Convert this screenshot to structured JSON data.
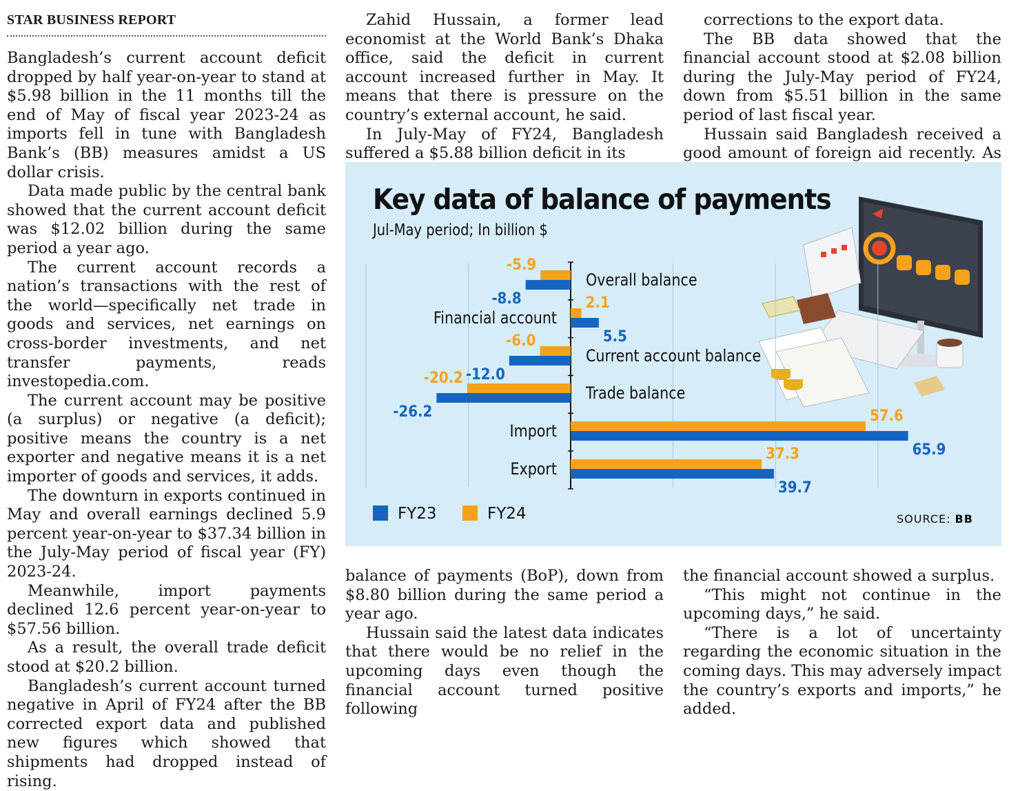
{
  "kicker": "STAR BUSINESS REPORT",
  "article": {
    "col1": [
      "Bangladesh’s current account deficit dropped by half year-on-year to stand at $5.98 billion in the 11 months till the end of May of fiscal year 2023-24 as imports fell in tune with Bangladesh Bank’s (BB) measures amidst a US dollar crisis.",
      "Data made public by the central bank showed that the current account deficit was $12.02 billion during the same period a year ago.",
      "The current account records a nation’s transactions with the rest of the world—specifically net trade in goods and services, net earnings on cross-border investments, and net transfer payments, reads investopedia.com.",
      "The current account may be positive (a surplus) or negative (a deficit); positive means the country is a net exporter and negative means it is a net importer of goods and services, it adds.",
      "The downturn in exports continued in May and overall earnings declined 5.9 percent year-on-year to $37.34 billion in the July-May period of fiscal year (FY) 2023-24.",
      "Meanwhile, import payments declined 12.6 percent year-on-year to $57.56 billion.",
      "As a result, the overall trade deficit stood at $20.2 billion.",
      "Bangladesh’s current account turned negative in April of FY24 after the BB corrected export data and published new figures which showed that shipments had dropped instead of rising."
    ],
    "col2_top": [
      "Zahid Hussain, a former lead economist at the World Bank’s Dhaka office, said the deficit in current account increased further in May. It means that there is pressure on the country’s external account, he said.",
      "In July-May of FY24, Bangladesh suffered a $5.88 billion deficit in its"
    ],
    "col3_top": [
      "corrections to the export data.",
      "The BB data showed that the financial account stood at $2.08 billion during the July-May period of FY24, down from $5.51 billion in the same period of last fiscal year.",
      "Hussain said Bangladesh received a good amount of foreign aid recently. As a result,"
    ],
    "col2_bottom": [
      "balance of payments (BoP), down from $8.80 billion during the same period a year ago.",
      "Hussain said the latest data indicates that there would be no relief in the upcoming days even though the financial account turned positive following"
    ],
    "col3_bottom": [
      "the financial account showed a surplus.",
      "“This might not continue in the upcoming days,” he said.",
      "“There is a lot of uncertainty regarding the economic situation in the coming days. This may adversely impact the country’s exports and imports,” he added."
    ]
  },
  "graphic": {
    "title": "Key data of balance of payments",
    "subtitle": "Jul-May period; In billion $",
    "source_label": "SOURCE:",
    "source_value": "BB",
    "colors": {
      "fy23": "#1565c0",
      "fy24": "#f7a21b",
      "background": "#d6ecf9"
    }
  },
  "chart_data": {
    "type": "bar",
    "orientation": "horizontal",
    "title": "Key data of balance of payments",
    "subtitle": "Jul-May period; In billion $",
    "categories": [
      "Overall balance",
      "Financial account",
      "Current account balance",
      "Trade balance",
      "Import",
      "Export"
    ],
    "series": [
      {
        "name": "FY23",
        "color": "#1565c0",
        "values": [
          -8.8,
          5.5,
          -12.0,
          -26.2,
          65.9,
          39.7
        ],
        "labels": [
          "-8.8",
          "5.5",
          "-12.0",
          "-26.2",
          "65.9",
          "39.7"
        ]
      },
      {
        "name": "FY24",
        "color": "#f7a21b",
        "values": [
          -5.9,
          2.1,
          -6.0,
          -20.2,
          57.6,
          37.3
        ],
        "labels": [
          "-5.9",
          "2.1",
          "-6.0",
          "-20.2",
          "57.6",
          "37.3"
        ]
      }
    ],
    "xlim": [
      -30,
      75
    ],
    "grid": true,
    "legend": "bottom-left",
    "source": "SOURCE: BB"
  }
}
